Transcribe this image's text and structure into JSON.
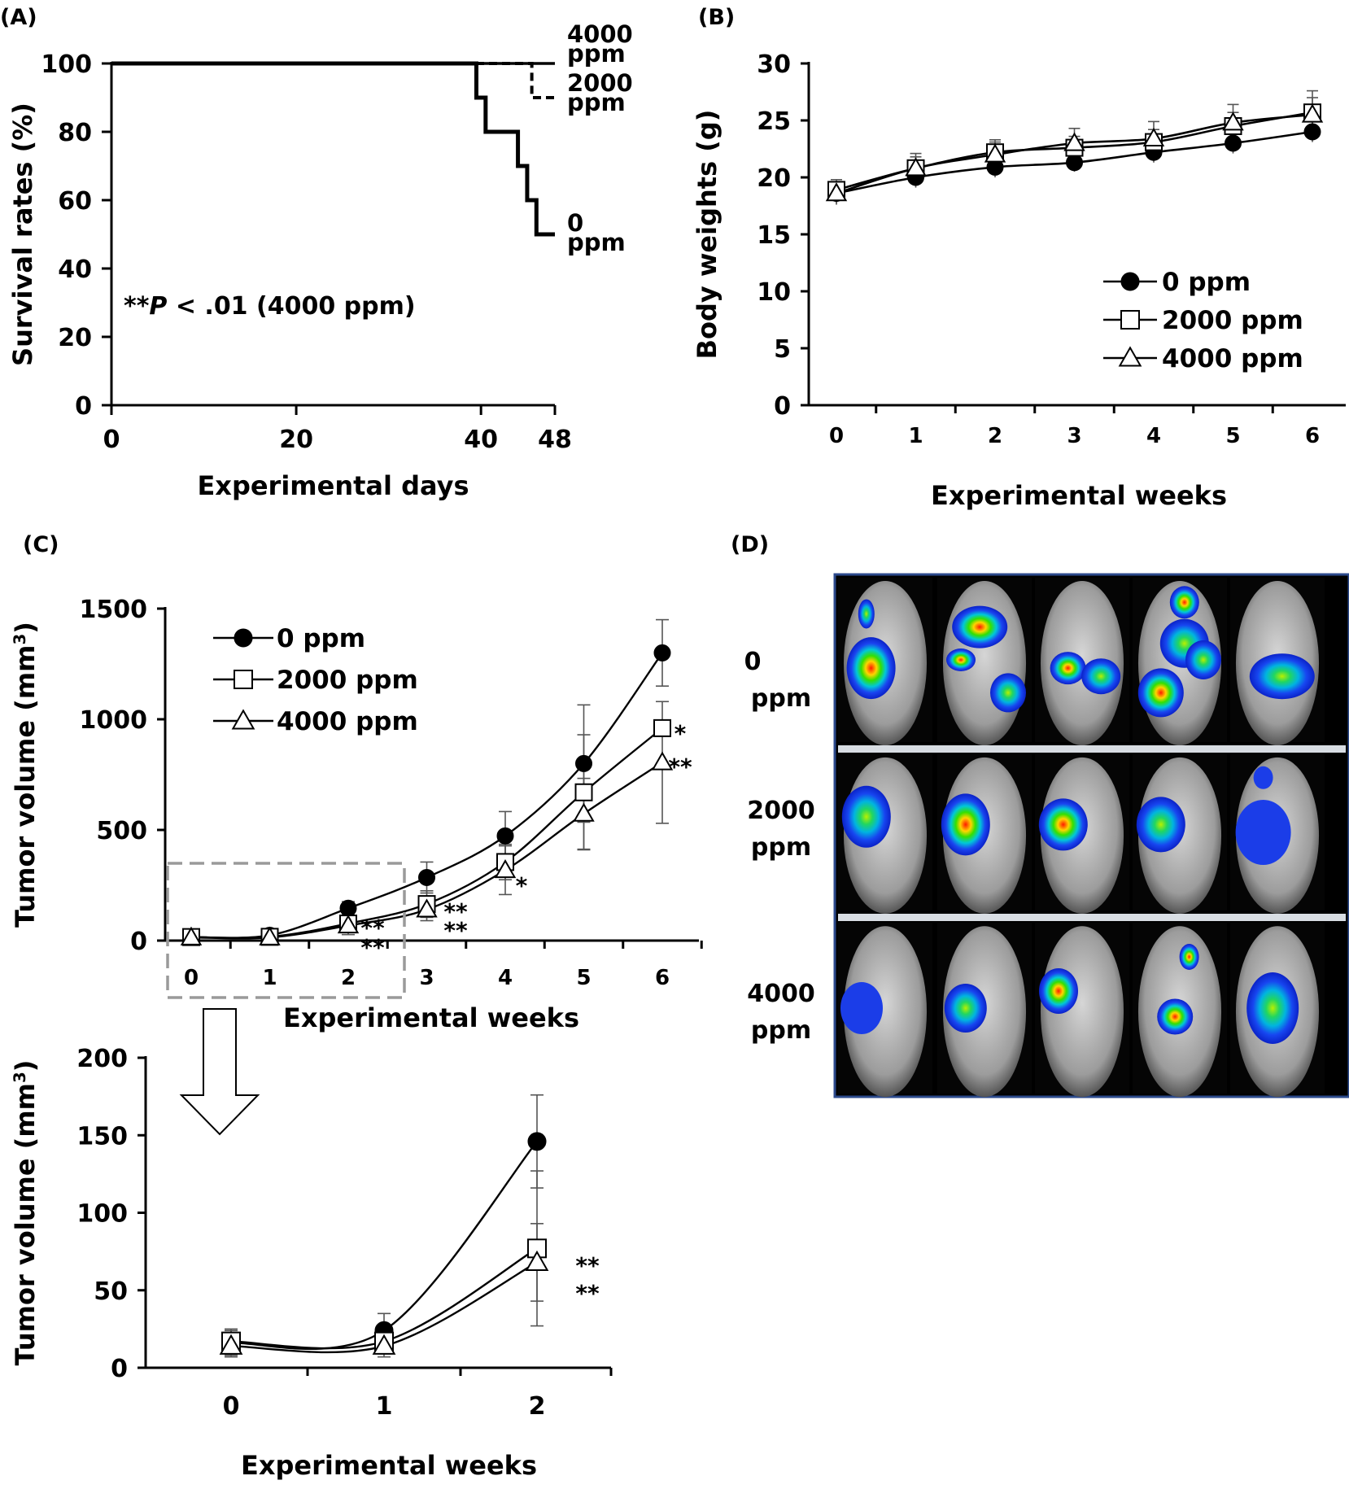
{
  "chart_data": [
    {
      "panel": "(A)",
      "type": "line",
      "xlabel": "Experimental days",
      "ylabel": "Survival rates (%)",
      "xlim": [
        0,
        48
      ],
      "ylim": [
        0,
        100
      ],
      "xticks": [
        "0",
        "20",
        "40",
        "48"
      ],
      "yticks": [
        "0",
        "20",
        "40",
        "60",
        "80",
        "100"
      ],
      "annotation_prefix": "**",
      "annotation_italic": "P",
      "annotation_suffix": " < .01 (4000 ppm)",
      "series": [
        {
          "name": "4000 ppm",
          "line": "thin",
          "x": [
            0,
            48
          ],
          "y": [
            100,
            100
          ]
        },
        {
          "name": "2000 ppm",
          "line": "dashed",
          "x": [
            0,
            45.5,
            45.5,
            46.5,
            46.5,
            48
          ],
          "y": [
            100,
            100,
            90,
            90,
            90,
            90
          ]
        },
        {
          "name": "0 ppm",
          "line": "thick",
          "x": [
            0,
            39.5,
            39.5,
            40.5,
            40.5,
            44,
            44,
            45,
            45,
            46,
            46,
            47,
            47,
            48
          ],
          "y": [
            100,
            100,
            90,
            90,
            80,
            80,
            70,
            70,
            60,
            60,
            50,
            50,
            50,
            50
          ]
        }
      ],
      "end_labels": [
        {
          "line1": "4000",
          "line2": "ppm"
        },
        {
          "line1": "2000",
          "line2": "ppm"
        },
        {
          "line1": "0",
          "line2": "ppm"
        }
      ]
    },
    {
      "panel": "(B)",
      "type": "line",
      "xlabel": "Experimental weeks",
      "ylabel": "Body weights (g)",
      "x": [
        0,
        1,
        2,
        3,
        4,
        5,
        6
      ],
      "xticks": [
        "0",
        "1",
        "2",
        "3",
        "4",
        "5",
        "6"
      ],
      "yticks": [
        "0",
        "5",
        "10",
        "15",
        "20",
        "25",
        "30"
      ],
      "ylim": [
        0,
        30
      ],
      "legend_position": "lower-right",
      "series": [
        {
          "name": "0 ppm",
          "marker": "filled-circle",
          "values": [
            18.6,
            20.0,
            20.9,
            21.3,
            22.2,
            23.0,
            24.0
          ],
          "err": [
            1.0,
            0.9,
            0.9,
            0.8,
            0.9,
            0.9,
            0.9
          ]
        },
        {
          "name": "2000 ppm",
          "marker": "open-square",
          "values": [
            18.9,
            20.8,
            22.2,
            22.6,
            23.1,
            24.5,
            25.7
          ],
          "err": [
            0.9,
            1.0,
            0.9,
            1.0,
            1.1,
            1.2,
            1.3
          ]
        },
        {
          "name": "4000 ppm",
          "marker": "open-triangle",
          "values": [
            18.6,
            20.8,
            22.0,
            23.0,
            23.4,
            24.8,
            25.5
          ],
          "err": [
            0.9,
            1.3,
            1.3,
            1.3,
            1.5,
            1.6,
            2.1
          ]
        }
      ]
    },
    {
      "panel": "(C)",
      "type": "line",
      "xlabel": "Experimental weeks",
      "ylabel_main": "Tumor volume (mm",
      "ylabel_sup": "3",
      "ylabel_close": ")",
      "x": [
        0,
        1,
        2,
        3,
        4,
        5,
        6
      ],
      "xticks": [
        "0",
        "1",
        "2",
        "3",
        "4",
        "5",
        "6"
      ],
      "yticks": [
        "0",
        "500",
        "1000",
        "1500"
      ],
      "ylim": [
        0,
        1500
      ],
      "legend_position": "top-left",
      "series": [
        {
          "name": "0 ppm",
          "marker": "filled-circle",
          "values": [
            16,
            24,
            146,
            285,
            473,
            800,
            1300
          ],
          "err": [
            8,
            10,
            30,
            70,
            110,
            265,
            150
          ]
        },
        {
          "name": "2000 ppm",
          "marker": "open-square",
          "values": [
            16,
            17,
            77,
            165,
            355,
            670,
            960
          ],
          "err": [
            8,
            8,
            50,
            60,
            80,
            260,
            0
          ]
        },
        {
          "name": "4000 ppm",
          "marker": "open-triangle",
          "values": [
            14,
            14,
            68,
            140,
            318,
            573,
            805
          ],
          "err": [
            7,
            7,
            25,
            50,
            110,
            160,
            275
          ]
        }
      ],
      "significance": [
        {
          "x": 2,
          "marks": [
            "**",
            "**"
          ]
        },
        {
          "x": 3,
          "marks": [
            "**",
            "**"
          ]
        },
        {
          "x": 4,
          "marks": [
            "*"
          ]
        },
        {
          "x": 6,
          "marks": [
            "*",
            "**"
          ]
        }
      ]
    },
    {
      "panel": "(C) inset",
      "type": "line",
      "xlabel": "Experimental weeks",
      "ylabel_main": "Tumor volume (mm",
      "ylabel_sup": "3",
      "ylabel_close": ")",
      "x": [
        0,
        1,
        2
      ],
      "xticks": [
        "0",
        "1",
        "2"
      ],
      "yticks": [
        "0",
        "50",
        "100",
        "150",
        "200"
      ],
      "ylim": [
        0,
        200
      ],
      "series": [
        {
          "name": "0 ppm",
          "marker": "filled-circle",
          "values": [
            16,
            24,
            146
          ],
          "err": [
            8,
            11,
            30
          ]
        },
        {
          "name": "2000 ppm",
          "marker": "open-square",
          "values": [
            17,
            17,
            77
          ],
          "err": [
            8,
            8,
            50
          ]
        },
        {
          "name": "4000 ppm",
          "marker": "open-triangle",
          "values": [
            14,
            14,
            68
          ],
          "err": [
            7,
            7,
            25
          ]
        }
      ],
      "significance": [
        "**",
        "**"
      ]
    }
  ],
  "panel_d": {
    "label": "(D)",
    "rows": [
      {
        "line1": "0",
        "line2": "ppm"
      },
      {
        "line1": "2000",
        "line2": "ppm"
      },
      {
        "line1": "4000",
        "line2": "ppm"
      }
    ]
  }
}
